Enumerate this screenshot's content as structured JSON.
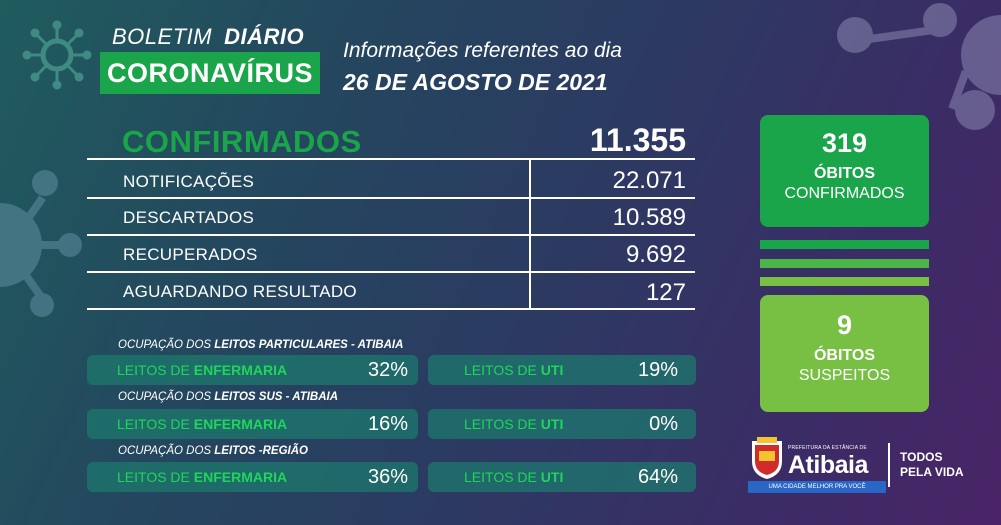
{
  "header": {
    "boletim": "BOLETIM",
    "diario": "DIÁRIO",
    "coronavirus": "CORONAVÍRUS",
    "info": "Informações referentes ao dia",
    "date": "26 DE AGOSTO DE 2021"
  },
  "main": {
    "confirmed_label": "CONFIRMADOS",
    "confirmed_value": "11.355",
    "rows": [
      {
        "label": "NOTIFICAÇÕES",
        "value": "22.071"
      },
      {
        "label": "DESCARTADOS",
        "value": "10.589"
      },
      {
        "label": "RECUPERADOS",
        "value": "9.692"
      },
      {
        "label": "AGUARDANDO RESULTADO",
        "value": "127"
      }
    ]
  },
  "beds": [
    {
      "title_prefix": "OCUPAÇÃO DOS ",
      "title_bold": "LEITOS PARTICULARES - ATIBAIA",
      "left_prefix": "LEITOS DE ",
      "left_bold": "ENFERMARIA",
      "left_pct": "32%",
      "right_prefix": "LEITOS DE ",
      "right_bold": "UTI",
      "right_pct": "19%"
    },
    {
      "title_prefix": "OCUPAÇÃO DOS ",
      "title_bold": "LEITOS SUS - ATIBAIA",
      "left_prefix": "LEITOS DE ",
      "left_bold": "ENFERMARIA",
      "left_pct": "16%",
      "right_prefix": "LEITOS DE ",
      "right_bold": "UTI",
      "right_pct": "0%"
    },
    {
      "title_prefix": "OCUPAÇÃO DOS ",
      "title_bold": "LEITOS -REGIÃO",
      "left_prefix": "LEITOS DE ",
      "left_bold": "ENFERMARIA",
      "left_pct": "36%",
      "right_prefix": "LEITOS DE ",
      "right_bold": "UTI",
      "right_pct": "64%"
    }
  ],
  "deaths": {
    "confirmed_count": "319",
    "confirmed_l1": "ÓBITOS",
    "confirmed_l2": "CONFIRMADOS",
    "suspect_count": "9",
    "suspect_l1": "ÓBITOS",
    "suspect_l2": "SUSPEITOS"
  },
  "logo": {
    "prefeitura": "PREFEITURA DA ESTÂNCIA DE",
    "name": "Atibaia",
    "slogan": "UMA CIDADE MELHOR PRA VOCÊ",
    "todos": "TODOS",
    "pela_vida": "PELA VIDA"
  },
  "colors": {
    "green": "#1aa54a",
    "light_green": "#78c043",
    "text_green": "#1ed65a",
    "pill": "#1e786e"
  }
}
